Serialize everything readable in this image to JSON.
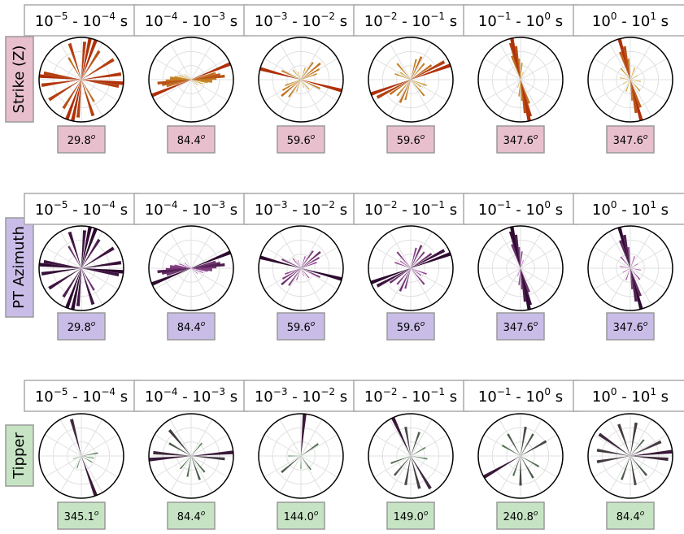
{
  "row_labels": [
    {
      "text": "Strike (Z)",
      "color": "#e8bfcc"
    },
    {
      "text": "PT Azimuth",
      "color": "#c9bde8"
    },
    {
      "text": "Tipper",
      "color": "#c6e4c4"
    }
  ],
  "chart_data": [
    {
      "type": "rose",
      "row": 0,
      "symmetric": true,
      "colors": [
        "#d8d040",
        "#b0300a"
      ],
      "title": [
        "10",
        "−5",
        " - 10",
        "−4",
        " s"
      ],
      "annotation": [
        "29.8",
        "o"
      ],
      "x": [
        5,
        12,
        20,
        32,
        58,
        82,
        95,
        100,
        150,
        162
      ],
      "values": [
        0.9,
        1,
        1,
        0.8,
        0.9,
        0.95,
        1,
        0.9,
        0.6,
        0.9
      ],
      "rlim": [
        0,
        1
      ]
    },
    {
      "type": "rose",
      "row": 0,
      "symmetric": true,
      "colors": [
        "#d8d040",
        "#b0300a"
      ],
      "title": [
        "10",
        "−4",
        " - 10",
        "−3",
        " s"
      ],
      "annotation": [
        "84.4",
        "o"
      ],
      "x": [
        68,
        75,
        80,
        84,
        88,
        92,
        96,
        100,
        110,
        130
      ],
      "values": [
        1,
        0.6,
        0.7,
        0.8,
        0.6,
        0.5,
        0.5,
        0.4,
        0.3,
        0.2
      ],
      "rlim": [
        0,
        1
      ]
    },
    {
      "type": "rose",
      "row": 0,
      "symmetric": true,
      "colors": [
        "#d8d040",
        "#b0300a"
      ],
      "title": [
        "10",
        "−3",
        " - 10",
        "−2",
        " s"
      ],
      "annotation": [
        "59.6",
        "o"
      ],
      "x": [
        20,
        35,
        50,
        60,
        70,
        105,
        115,
        140,
        160
      ],
      "values": [
        0.3,
        0.5,
        0.6,
        0.5,
        0.4,
        1,
        0.5,
        0.3,
        0.2
      ],
      "rlim": [
        0,
        1
      ]
    },
    {
      "type": "rose",
      "row": 0,
      "symmetric": true,
      "colors": [
        "#d8d040",
        "#b0300a"
      ],
      "title": [
        "10",
        "−2",
        " - 10",
        "−1",
        " s"
      ],
      "annotation": [
        "59.6",
        "o"
      ],
      "x": [
        15,
        25,
        40,
        55,
        62,
        70,
        110,
        125,
        140
      ],
      "values": [
        0.5,
        0.6,
        0.5,
        0.6,
        0.9,
        1,
        0.4,
        0.3,
        0.5
      ],
      "rlim": [
        0,
        1
      ]
    },
    {
      "type": "rose",
      "row": 0,
      "symmetric": true,
      "colors": [
        "#d8d040",
        "#b0300a"
      ],
      "title": [
        "10",
        "−1",
        " - 10",
        "0",
        " s"
      ],
      "annotation": [
        "347.6",
        "o"
      ],
      "x": [
        160,
        165,
        168,
        172,
        176,
        5,
        20
      ],
      "values": [
        0.6,
        0.9,
        1,
        0.8,
        0.5,
        0.4,
        0.2
      ],
      "rlim": [
        0,
        1
      ]
    },
    {
      "type": "rose",
      "row": 0,
      "symmetric": true,
      "colors": [
        "#d8d040",
        "#b0300a"
      ],
      "title": [
        "10",
        "0",
        " - 10",
        "1",
        " s"
      ],
      "annotation": [
        "347.6",
        "o"
      ],
      "x": [
        165,
        170,
        160,
        175,
        20,
        60,
        100,
        140
      ],
      "values": [
        1,
        0.8,
        0.7,
        0.5,
        0.3,
        0.2,
        0.25,
        0.35
      ],
      "rlim": [
        0,
        1
      ]
    },
    {
      "type": "rose",
      "row": 1,
      "symmetric": true,
      "colors": [
        "#d070d0",
        "#2e0a30"
      ],
      "title": [
        "10",
        "−5",
        " - 10",
        "−4",
        " s"
      ],
      "annotation": [
        "29.8",
        "o"
      ],
      "x": [
        5,
        12,
        20,
        32,
        58,
        82,
        95,
        100,
        150,
        162
      ],
      "values": [
        0.9,
        1,
        1,
        0.8,
        0.9,
        0.95,
        1,
        0.9,
        0.6,
        0.9
      ],
      "rlim": [
        0,
        1
      ]
    },
    {
      "type": "rose",
      "row": 1,
      "symmetric": true,
      "colors": [
        "#d070d0",
        "#2e0a30"
      ],
      "title": [
        "10",
        "−4",
        " - 10",
        "−3",
        " s"
      ],
      "annotation": [
        "84.4",
        "o"
      ],
      "x": [
        68,
        75,
        80,
        84,
        88,
        92,
        96,
        100,
        110,
        130
      ],
      "values": [
        1,
        0.6,
        0.7,
        0.8,
        0.6,
        0.5,
        0.5,
        0.4,
        0.3,
        0.2
      ],
      "rlim": [
        0,
        1
      ]
    },
    {
      "type": "rose",
      "row": 1,
      "symmetric": true,
      "colors": [
        "#d070d0",
        "#2e0a30"
      ],
      "title": [
        "10",
        "−3",
        " - 10",
        "−2",
        " s"
      ],
      "annotation": [
        "59.6",
        "o"
      ],
      "x": [
        20,
        35,
        50,
        60,
        70,
        105,
        115,
        140,
        160
      ],
      "values": [
        0.3,
        0.5,
        0.6,
        0.5,
        0.4,
        1,
        0.5,
        0.3,
        0.2
      ],
      "rlim": [
        0,
        1
      ]
    },
    {
      "type": "rose",
      "row": 1,
      "symmetric": true,
      "colors": [
        "#d070d0",
        "#2e0a30"
      ],
      "title": [
        "10",
        "−2",
        " - 10",
        "−1",
        " s"
      ],
      "annotation": [
        "59.6",
        "o"
      ],
      "x": [
        15,
        25,
        40,
        55,
        62,
        70,
        110,
        125,
        140
      ],
      "values": [
        0.5,
        0.6,
        0.5,
        0.6,
        0.9,
        1,
        0.4,
        0.3,
        0.5
      ],
      "rlim": [
        0,
        1
      ]
    },
    {
      "type": "rose",
      "row": 1,
      "symmetric": true,
      "colors": [
        "#d070d0",
        "#2e0a30"
      ],
      "title": [
        "10",
        "−1",
        " - 10",
        "0",
        " s"
      ],
      "annotation": [
        "347.6",
        "o"
      ],
      "x": [
        160,
        165,
        168,
        172,
        176,
        5,
        20
      ],
      "values": [
        0.6,
        0.9,
        1,
        0.8,
        0.5,
        0.4,
        0.2
      ],
      "rlim": [
        0,
        1
      ]
    },
    {
      "type": "rose",
      "row": 1,
      "symmetric": true,
      "colors": [
        "#d070d0",
        "#2e0a30"
      ],
      "title": [
        "10",
        "0",
        " - 10",
        "1",
        " s"
      ],
      "annotation": [
        "347.6",
        "o"
      ],
      "x": [
        165,
        170,
        160,
        175,
        20,
        60,
        100,
        140
      ],
      "values": [
        1,
        0.8,
        0.7,
        0.5,
        0.3,
        0.2,
        0.25,
        0.35
      ],
      "rlim": [
        0,
        1
      ]
    },
    {
      "type": "rose",
      "row": 2,
      "symmetric": false,
      "colors": [
        "#6cc06c",
        "#3a1838"
      ],
      "title": [
        "10",
        "−5",
        " - 10",
        "−4",
        " s"
      ],
      "annotation": [
        "345.1",
        "o"
      ],
      "x": [
        345,
        160,
        80,
        100,
        120,
        250,
        200
      ],
      "values": [
        0.9,
        1,
        0.4,
        0.3,
        0.3,
        0.2,
        0.3
      ],
      "rlim": [
        0,
        1
      ]
    },
    {
      "type": "rose",
      "row": 2,
      "symmetric": false,
      "colors": [
        "#6cc06c",
        "#3a1838"
      ],
      "title": [
        "10",
        "−4",
        " - 10",
        "−3",
        " s"
      ],
      "annotation": [
        "84.4",
        "o"
      ],
      "x": [
        85,
        95,
        265,
        275,
        300,
        320,
        140,
        160,
        190,
        220,
        40
      ],
      "values": [
        1,
        0.8,
        1,
        0.9,
        0.6,
        0.8,
        0.5,
        0.6,
        0.5,
        0.4,
        0.4
      ],
      "rlim": [
        0,
        1
      ]
    },
    {
      "type": "rose",
      "row": 2,
      "symmetric": false,
      "colors": [
        "#6cc06c",
        "#3a1838"
      ],
      "title": [
        "10",
        "−3",
        " - 10",
        "−2",
        " s"
      ],
      "annotation": [
        "144.0",
        "o"
      ],
      "x": [
        5,
        55,
        144,
        230,
        270,
        180
      ],
      "values": [
        1,
        0.5,
        0.4,
        0.6,
        0.3,
        0.3
      ],
      "rlim": [
        0,
        1
      ]
    },
    {
      "type": "rose",
      "row": 2,
      "symmetric": false,
      "colors": [
        "#6cc06c",
        "#3a1838"
      ],
      "title": [
        "10",
        "−2",
        " - 10",
        "−1",
        " s"
      ],
      "annotation": [
        "149.0",
        "o"
      ],
      "x": [
        335,
        350,
        20,
        149,
        165,
        190,
        220,
        250,
        60,
        100
      ],
      "values": [
        1,
        0.7,
        0.6,
        0.9,
        0.8,
        0.7,
        0.6,
        0.5,
        0.4,
        0.4
      ],
      "rlim": [
        0,
        1
      ]
    },
    {
      "type": "rose",
      "row": 2,
      "symmetric": false,
      "colors": [
        "#6cc06c",
        "#3a1838"
      ],
      "title": [
        "10",
        "−1",
        " - 10",
        "0",
        " s"
      ],
      "annotation": [
        "240.8",
        "o"
      ],
      "x": [
        240,
        60,
        30,
        10,
        330,
        300,
        150,
        180,
        200,
        120
      ],
      "values": [
        1,
        0.7,
        0.6,
        0.7,
        0.6,
        0.5,
        0.6,
        0.7,
        0.5,
        0.5
      ],
      "rlim": [
        0,
        1
      ]
    },
    {
      "type": "rose",
      "row": 2,
      "symmetric": false,
      "colors": [
        "#6cc06c",
        "#3a1838"
      ],
      "title": [
        "10",
        "0",
        " - 10",
        "1",
        " s"
      ],
      "annotation": [
        "84.4",
        "o"
      ],
      "x": [
        84,
        95,
        65,
        305,
        280,
        260,
        10,
        340,
        170,
        200,
        140,
        40
      ],
      "values": [
        1,
        0.9,
        0.8,
        0.9,
        0.8,
        0.8,
        0.8,
        0.8,
        0.7,
        0.6,
        0.6,
        0.5
      ],
      "rlim": [
        0,
        1
      ]
    }
  ]
}
